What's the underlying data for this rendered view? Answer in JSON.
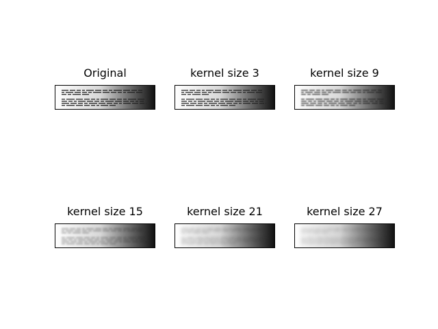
{
  "figure": {
    "panels": [
      {
        "title": "Original",
        "blur": 0,
        "text_opacity": 0.9
      },
      {
        "title": "kernel size 3",
        "blur": 0.35,
        "text_opacity": 0.85
      },
      {
        "title": "kernel size 9",
        "blur": 0.8,
        "text_opacity": 0.8
      },
      {
        "title": "kernel size 15",
        "blur": 1.4,
        "text_opacity": 0.45
      },
      {
        "title": "kernel size 21",
        "blur": 2.0,
        "text_opacity": 0.35
      },
      {
        "title": "kernel size 27",
        "blur": 2.6,
        "text_opacity": 0.3
      }
    ],
    "background_colors": [
      "#ffffff",
      "#111111"
    ]
  }
}
